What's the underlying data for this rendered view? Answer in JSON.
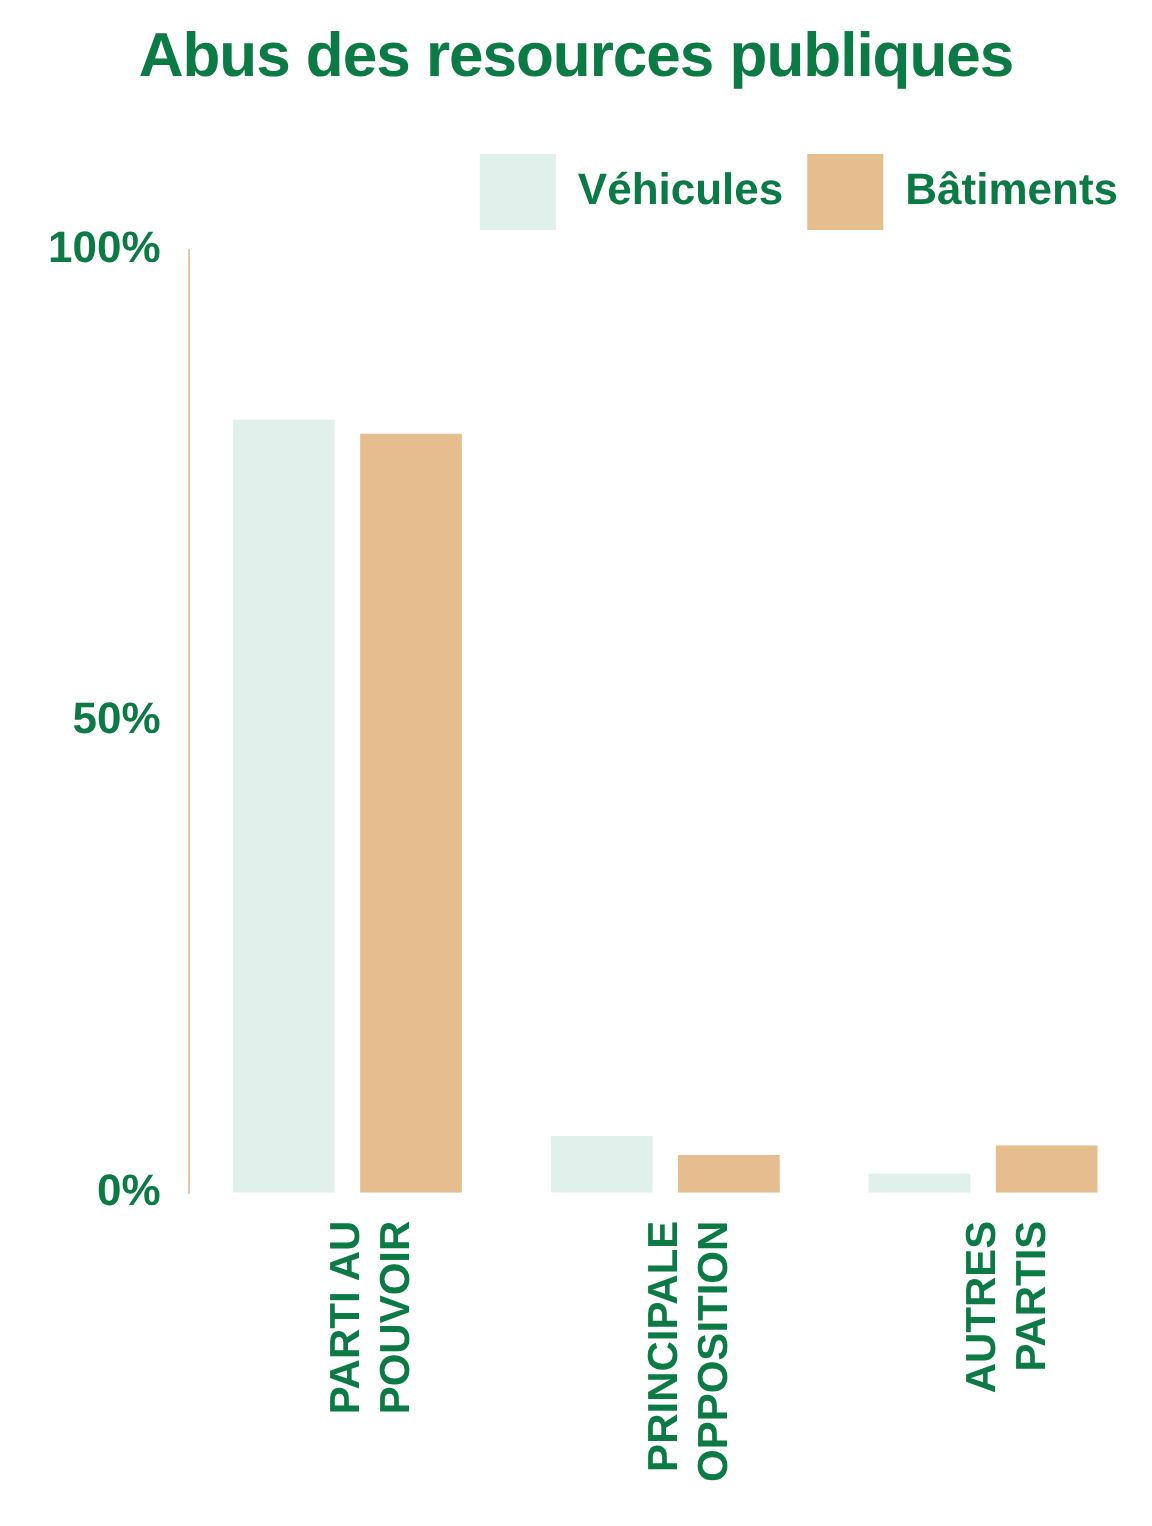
{
  "chart_data": {
    "type": "bar",
    "title": "Abus des resources publiques",
    "categories": [
      "PARTI AU\nPOUVOIR",
      "PRINCIPALE\nOPPOSITION",
      "AUTRES\nPARTIS"
    ],
    "series": [
      {
        "name": "Véhicules",
        "color": "#e0f0ea",
        "values": [
          82,
          6,
          2
        ]
      },
      {
        "name": "Bâtiments",
        "color": "#e6bd8f",
        "values": [
          80.5,
          4,
          5
        ]
      }
    ],
    "ylim": [
      0,
      100
    ],
    "yticks": [
      {
        "value": 0,
        "label": "0%"
      },
      {
        "value": 50,
        "label": "50%"
      },
      {
        "value": 100,
        "label": "100%"
      }
    ],
    "grid": false,
    "legend": "top right"
  }
}
